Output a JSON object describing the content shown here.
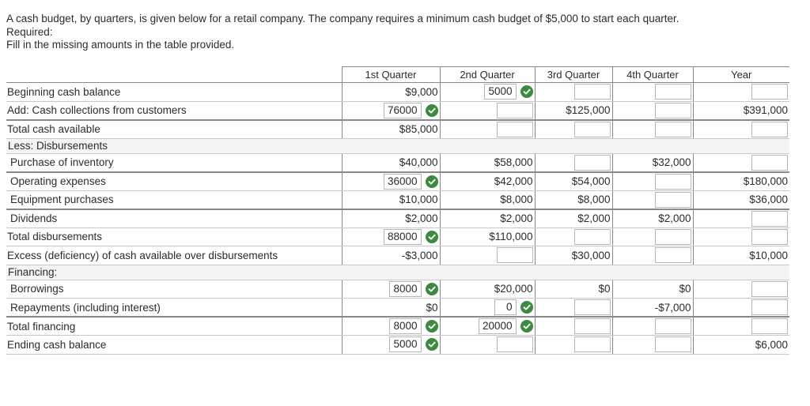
{
  "intro": {
    "line1": "A cash budget, by quarters, is given below for a retail company. The company requires a minimum cash budget of $5,000 to start each quarter.",
    "required": "Required:",
    "instruction": "Fill in the missing amounts in the table provided."
  },
  "headers": [
    "1st Quarter",
    "2nd Quarter",
    "3rd Quarter",
    "4th Quarter",
    "Year"
  ],
  "rows": [
    {
      "label": "Beginning cash balance",
      "indent": false,
      "cells": [
        {
          "type": "text",
          "value": "$9,000"
        },
        {
          "type": "input",
          "value": "5000",
          "check": true
        },
        {
          "type": "input",
          "value": ""
        },
        {
          "type": "input",
          "value": ""
        },
        {
          "type": "input",
          "value": ""
        }
      ]
    },
    {
      "label": "Add: Cash collections from customers",
      "indent": false,
      "thick": true,
      "cells": [
        {
          "type": "input",
          "value": "76000",
          "check": true
        },
        {
          "type": "input",
          "value": ""
        },
        {
          "type": "text",
          "value": "$125,000"
        },
        {
          "type": "input",
          "value": ""
        },
        {
          "type": "text",
          "value": "$391,000"
        }
      ]
    },
    {
      "label": "Total cash available",
      "indent": false,
      "cells": [
        {
          "type": "text",
          "value": "$85,000"
        },
        {
          "type": "input",
          "value": ""
        },
        {
          "type": "input",
          "value": ""
        },
        {
          "type": "input",
          "value": ""
        },
        {
          "type": "input",
          "value": ""
        }
      ]
    },
    {
      "label": "Less: Disbursements",
      "section": true
    },
    {
      "label": "Purchase of inventory",
      "indent": true,
      "thick": true,
      "cells": [
        {
          "type": "text",
          "value": "$40,000"
        },
        {
          "type": "text",
          "value": "$58,000"
        },
        {
          "type": "input",
          "value": ""
        },
        {
          "type": "text",
          "value": "$32,000"
        },
        {
          "type": "input",
          "value": ""
        }
      ]
    },
    {
      "label": "Operating expenses",
      "indent": true,
      "cells": [
        {
          "type": "input",
          "value": "36000",
          "check": true
        },
        {
          "type": "text",
          "value": "$42,000"
        },
        {
          "type": "text",
          "value": "$54,000"
        },
        {
          "type": "input",
          "value": ""
        },
        {
          "type": "text",
          "value": "$180,000"
        }
      ]
    },
    {
      "label": "Equipment purchases",
      "indent": true,
      "thick": true,
      "cells": [
        {
          "type": "text",
          "value": "$10,000"
        },
        {
          "type": "text",
          "value": "$8,000"
        },
        {
          "type": "text",
          "value": "$8,000"
        },
        {
          "type": "input",
          "value": ""
        },
        {
          "type": "text",
          "value": "$36,000"
        }
      ]
    },
    {
      "label": "Dividends",
      "indent": true,
      "cells": [
        {
          "type": "text",
          "value": "$2,000"
        },
        {
          "type": "text",
          "value": "$2,000"
        },
        {
          "type": "text",
          "value": "$2,000"
        },
        {
          "type": "text",
          "value": "$2,000"
        },
        {
          "type": "input",
          "value": ""
        }
      ]
    },
    {
      "label": "Total disbursements",
      "indent": false,
      "cells": [
        {
          "type": "input",
          "value": "88000",
          "check": true
        },
        {
          "type": "text",
          "value": "$110,000"
        },
        {
          "type": "input",
          "value": ""
        },
        {
          "type": "input",
          "value": ""
        },
        {
          "type": "input",
          "value": ""
        }
      ]
    },
    {
      "label": "Excess (deficiency) of cash available over disbursements",
      "indent": false,
      "cells": [
        {
          "type": "text",
          "value": "-$3,000"
        },
        {
          "type": "input",
          "value": ""
        },
        {
          "type": "text",
          "value": "$30,000"
        },
        {
          "type": "input",
          "value": ""
        },
        {
          "type": "text",
          "value": "$10,000"
        }
      ]
    },
    {
      "label": "Financing:",
      "section": true
    },
    {
      "label": "Borrowings",
      "indent": true,
      "cells": [
        {
          "type": "input",
          "value": "8000",
          "check": true
        },
        {
          "type": "text",
          "value": "$20,000"
        },
        {
          "type": "text",
          "value": "$0"
        },
        {
          "type": "text",
          "value": "$0"
        },
        {
          "type": "input",
          "value": ""
        }
      ]
    },
    {
      "label": "Repayments (including interest)",
      "indent": true,
      "thick": true,
      "cells": [
        {
          "type": "text",
          "value": "$0"
        },
        {
          "type": "input",
          "value": "0",
          "check": true
        },
        {
          "type": "input",
          "value": ""
        },
        {
          "type": "text",
          "value": "-$7,000"
        },
        {
          "type": "input",
          "value": ""
        }
      ]
    },
    {
      "label": "Total financing",
      "indent": false,
      "cells": [
        {
          "type": "input",
          "value": "8000",
          "check": true
        },
        {
          "type": "input",
          "value": "20000",
          "check": true
        },
        {
          "type": "input",
          "value": ""
        },
        {
          "type": "input",
          "value": ""
        },
        {
          "type": "input",
          "value": ""
        }
      ]
    },
    {
      "label": "Ending cash balance",
      "indent": false,
      "cells": [
        {
          "type": "input",
          "value": "5000",
          "check": true
        },
        {
          "type": "input",
          "value": ""
        },
        {
          "type": "input",
          "value": ""
        },
        {
          "type": "input",
          "value": ""
        },
        {
          "type": "text",
          "value": "$6,000"
        }
      ]
    }
  ],
  "colors": {
    "check": "#3b8a3f",
    "border": "#888888",
    "sectionFill": "#f4f4f4"
  },
  "icons": {
    "correct": "check-circle-icon"
  }
}
